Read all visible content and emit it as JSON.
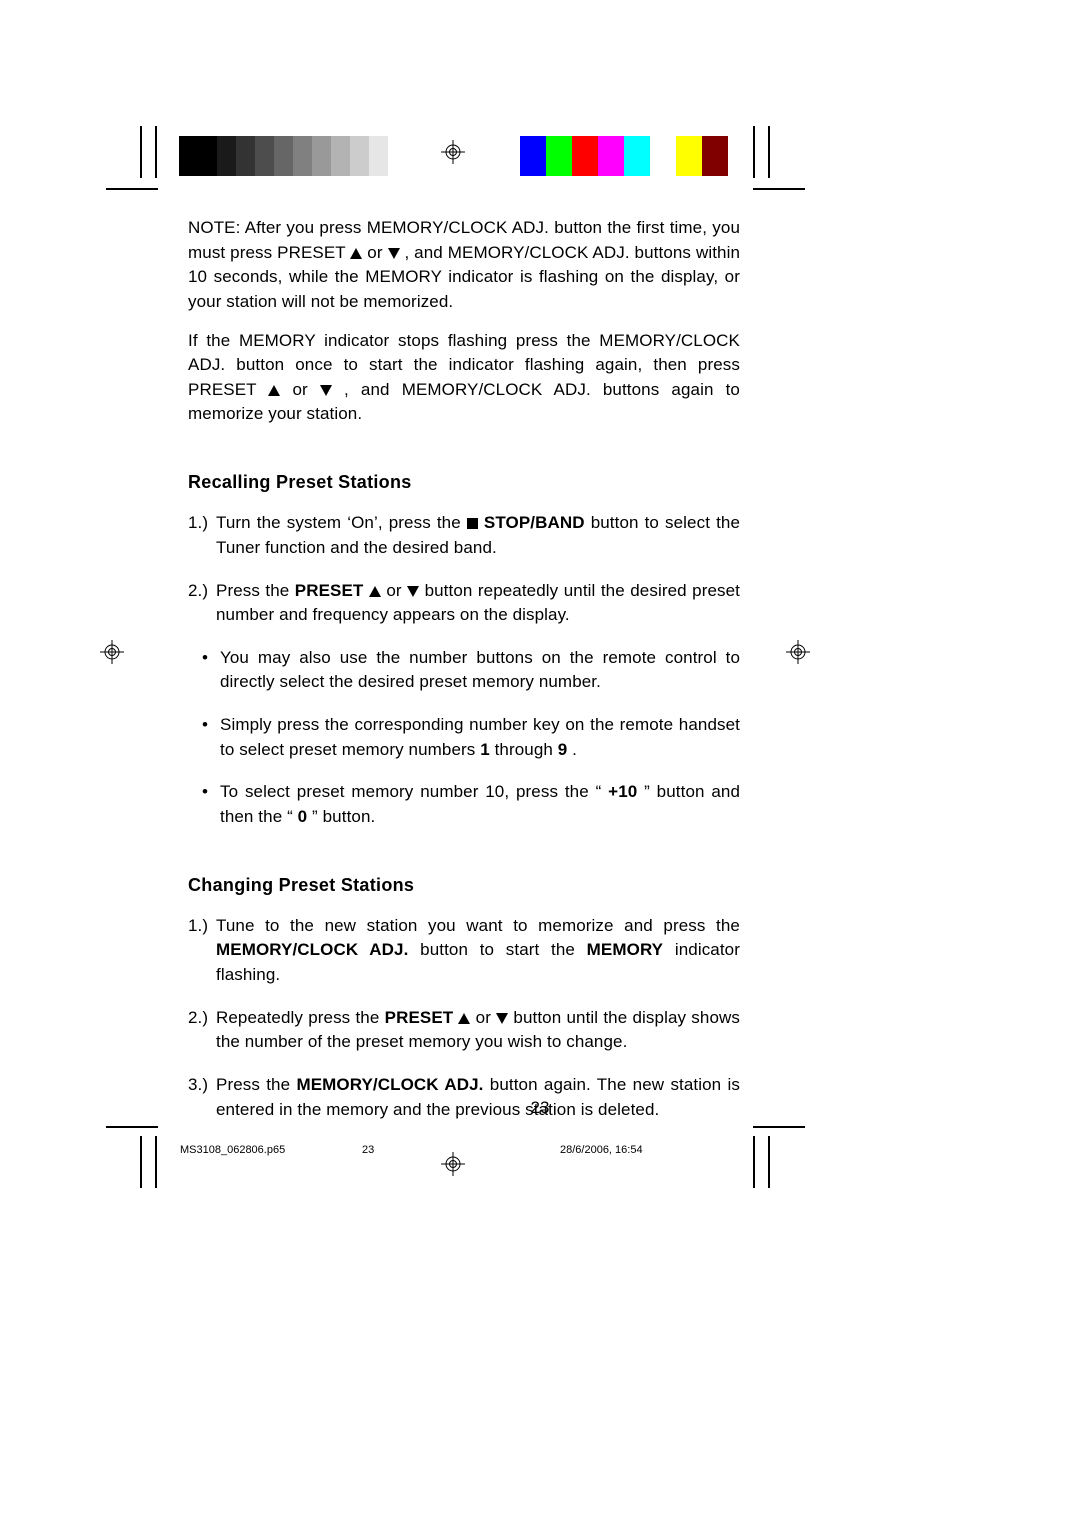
{
  "bars": {
    "gray": {
      "colors": [
        "#000000",
        "#000000",
        "#1a1a1a",
        "#333333",
        "#4d4d4d",
        "#666666",
        "#808080",
        "#999999",
        "#b3b3b3",
        "#cccccc",
        "#e6e6e6",
        "#ffffff"
      ],
      "swatch_width": 19
    },
    "color": {
      "colors": [
        "#0000ff",
        "#00ff00",
        "#ff0000",
        "#ff00ff",
        "#00ffff",
        "#ffffff",
        "#ffff00",
        "#800000"
      ],
      "swatch_width": 26
    }
  },
  "note": {
    "p1_a": "NOTE: After you press MEMORY/CLOCK ADJ.  button the first time, you must press PRESET ",
    "p1_b": " or ",
    "p1_c": ", and MEMORY/CLOCK ADJ.  buttons within 10 seconds, while the MEMORY indicator is flashing on the display, or your station will not be memorized.",
    "p2_a": "If the MEMORY indicator stops flashing press the MEMORY/CLOCK ADJ. button once to start the indicator flashing again, then press PRESET  ",
    "p2_b": " or ",
    "p2_c": ", and MEMORY/CLOCK ADJ.  buttons again to memorize your station."
  },
  "recalling": {
    "title": "Recalling Preset Stations",
    "s1": {
      "num": "1.)",
      "a": "Turn the system ‘On’, press the ",
      "stopband": " STOP/BAND",
      "b": " button to select the Tuner function and the desired band."
    },
    "s2": {
      "num": "2.)",
      "a": "Press the ",
      "preset": "PRESET ",
      "mid": " or ",
      "b": " button repeatedly until the desired preset number and frequency appears on the display."
    },
    "b1": "You may also use the number buttons on the remote control to directly select the desired preset memory number.",
    "b2": {
      "a": "Simply press the corresponding number key on the remote handset to select preset memory numbers ",
      "one": "1",
      "mid": " through ",
      "nine": "9",
      "end": "."
    },
    "b3": {
      "a": "To select preset memory number 10, press the “",
      "plus10": "+10",
      "mid": "” button and then the “",
      "zero": "0",
      "end": "” button."
    }
  },
  "changing": {
    "title": "Changing Preset Stations",
    "s1": {
      "num": "1.)",
      "a": "Tune to the new station you want to memorize and press the ",
      "memclk": "MEMORY/CLOCK ADJ.",
      "b": " button to start the ",
      "memory": "MEMORY",
      "c": " indicator flashing."
    },
    "s2": {
      "num": "2.)",
      "a": "Repeatedly press the ",
      "preset": "PRESET ",
      "mid": " or ",
      "b": " button until the display shows the number of the preset memory you wish to change."
    },
    "s3": {
      "num": "3.)",
      "a": "Press the ",
      "memclk": "MEMORY/CLOCK ADJ.",
      "b": " button again. The new station is entered in the memory and the previous station is deleted."
    }
  },
  "page_number": "23",
  "footer": {
    "filename": "MS3108_062806.p65",
    "page": "23",
    "timestamp": "28/6/2006, 16:54"
  }
}
